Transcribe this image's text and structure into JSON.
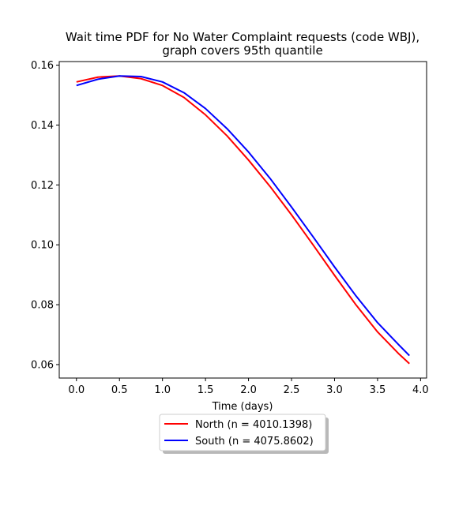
{
  "chart_data": {
    "type": "line",
    "title": [
      "Wait time PDF for No Water Complaint  requests (code WBJ),",
      "graph covers 95th quantile"
    ],
    "xlabel": "Time (days)",
    "ylabel": "",
    "xlim": [
      -0.2,
      4.07
    ],
    "ylim": [
      0.0555,
      0.1612
    ],
    "xticks": [
      0.0,
      0.5,
      1.0,
      1.5,
      2.0,
      2.5,
      3.0,
      3.5,
      4.0
    ],
    "xtick_labels": [
      "0.0",
      "0.5",
      "1.0",
      "1.5",
      "2.0",
      "2.5",
      "3.0",
      "3.5",
      "4.0"
    ],
    "yticks": [
      0.06,
      0.08,
      0.1,
      0.12,
      0.14,
      0.16
    ],
    "ytick_labels": [
      "0.06",
      "0.08",
      "0.10",
      "0.12",
      "0.14",
      "0.16"
    ],
    "grid": false,
    "legend_position": "below",
    "series": [
      {
        "name": "North (n = 4010.1398)",
        "color": "#ff0000",
        "x": [
          0.0,
          0.25,
          0.5,
          0.75,
          1.0,
          1.25,
          1.5,
          1.75,
          2.0,
          2.25,
          2.5,
          2.75,
          3.0,
          3.25,
          3.5,
          3.75,
          3.87
        ],
        "y": [
          0.1544,
          0.156,
          0.1564,
          0.1555,
          0.1532,
          0.1492,
          0.1434,
          0.1364,
          0.1283,
          0.1195,
          0.11,
          0.1,
          0.0898,
          0.0799,
          0.0709,
          0.0635,
          0.0603
        ]
      },
      {
        "name": "South (n = 4075.8602)",
        "color": "#0000ff",
        "x": [
          0.0,
          0.25,
          0.5,
          0.75,
          1.0,
          1.25,
          1.5,
          1.75,
          2.0,
          2.25,
          2.5,
          2.75,
          3.0,
          3.25,
          3.5,
          3.75,
          3.87
        ],
        "y": [
          0.1532,
          0.1553,
          0.1564,
          0.1562,
          0.1544,
          0.1508,
          0.1455,
          0.1388,
          0.131,
          0.1222,
          0.1126,
          0.1027,
          0.0926,
          0.0829,
          0.074,
          0.0665,
          0.063
        ]
      }
    ]
  }
}
